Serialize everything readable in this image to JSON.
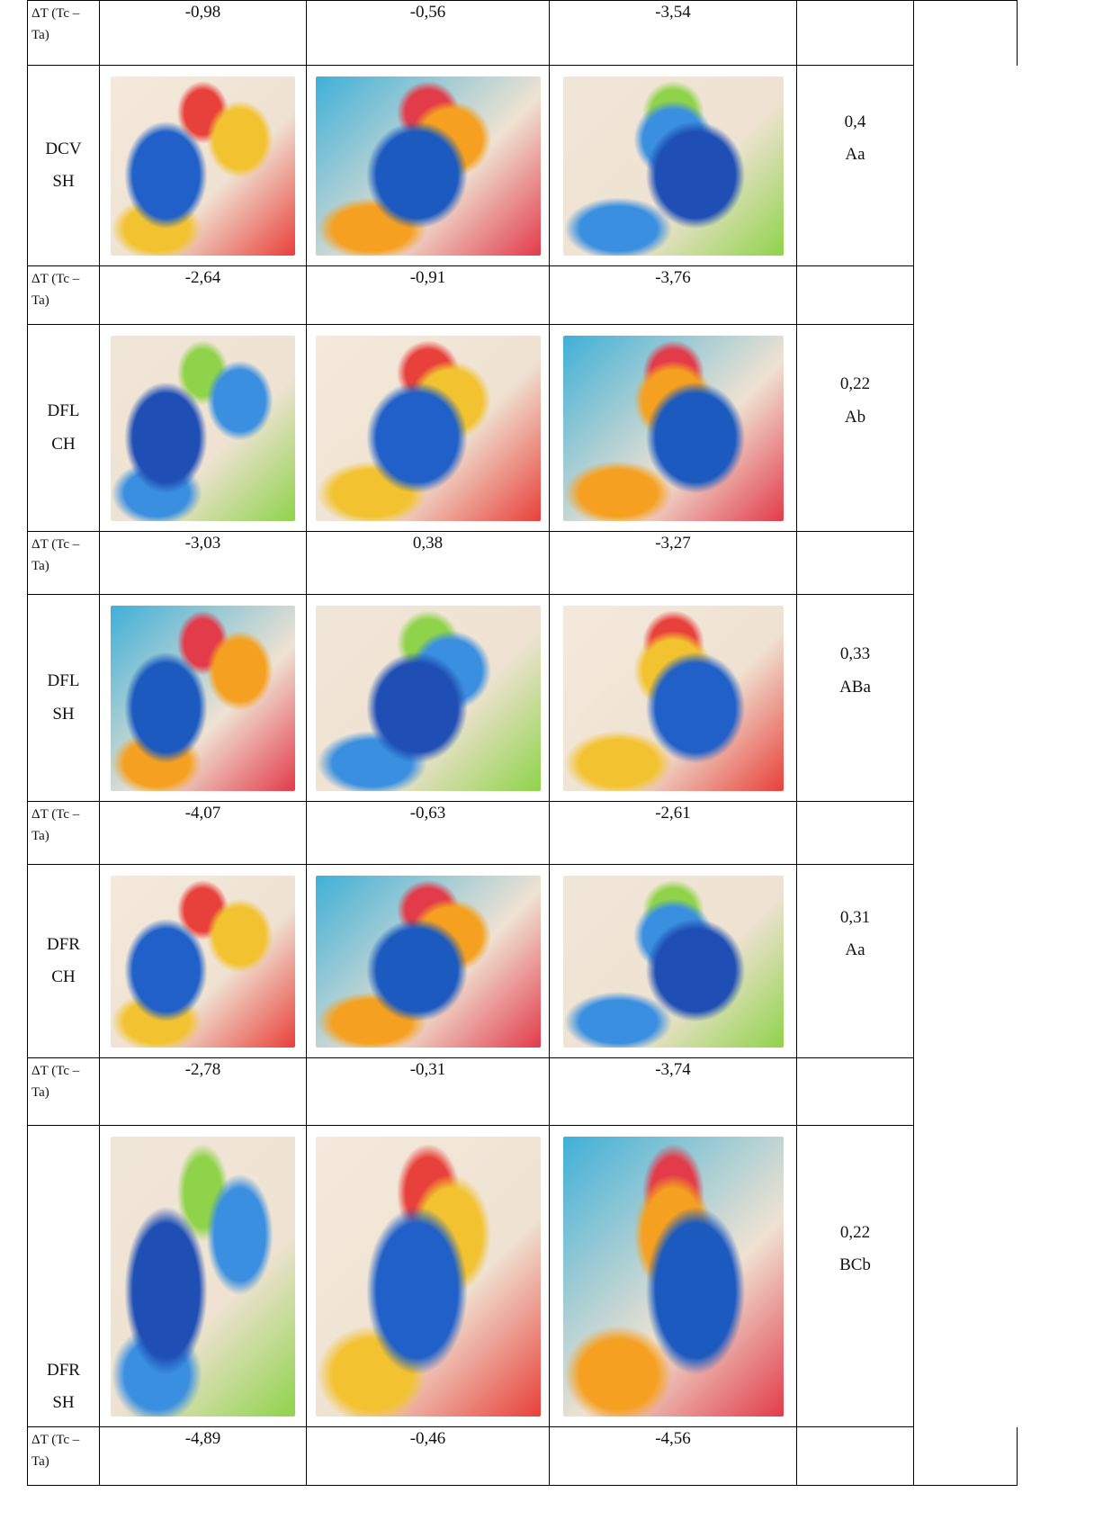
{
  "rows": [
    {
      "label": "ΔT (Tc – Ta)",
      "values": [
        "-0,98",
        "-0,56",
        "-3,54"
      ]
    },
    {
      "label": "DCV SH",
      "score": "0,4",
      "group": "Aa"
    },
    {
      "label": "ΔT (Tc – Ta)",
      "values": [
        "-2,64",
        "-0,91",
        "-3,76"
      ]
    },
    {
      "label": "DFL CH",
      "score": "0,22",
      "group": "Ab"
    },
    {
      "label": "ΔT (Tc – Ta)",
      "values": [
        "-3,03",
        "0,38",
        "-3,27"
      ]
    },
    {
      "label": "DFL SH",
      "score": "0,33",
      "group": "ABa"
    },
    {
      "label": "ΔT (Tc – Ta)",
      "values": [
        "-4,07",
        "-0,63",
        "-2,61"
      ]
    },
    {
      "label": "DFR CH",
      "score": "0,31",
      "group": "Aa"
    },
    {
      "label": "ΔT (Tc – Ta)",
      "values": [
        "-2,78",
        "-0,31",
        "-3,74"
      ]
    },
    {
      "label": "DFR SH",
      "score": "0,22",
      "group": "BCb"
    },
    {
      "label": "ΔT (Tc – Ta)",
      "values": [
        "-4,89",
        "-0,46",
        "-4,56"
      ]
    }
  ]
}
